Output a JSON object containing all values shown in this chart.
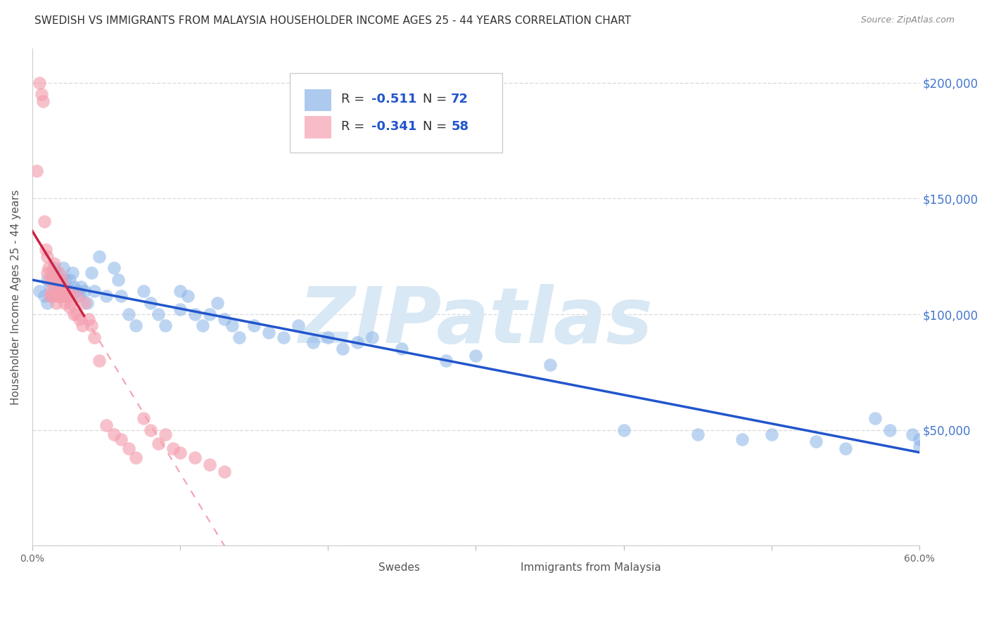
{
  "title": "SWEDISH VS IMMIGRANTS FROM MALAYSIA HOUSEHOLDER INCOME AGES 25 - 44 YEARS CORRELATION CHART",
  "source": "Source: ZipAtlas.com",
  "ylabel": "Householder Income Ages 25 - 44 years",
  "x_min": 0.0,
  "x_max": 0.6,
  "y_min": 0,
  "y_max": 215000,
  "x_ticks": [
    0.0,
    0.1,
    0.2,
    0.3,
    0.4,
    0.5,
    0.6
  ],
  "x_tick_labels": [
    "0.0%",
    "",
    "",
    "",
    "",
    "",
    "60.0%"
  ],
  "y_ticks": [
    0,
    50000,
    100000,
    150000,
    200000
  ],
  "y_tick_labels": [
    "",
    "$50,000",
    "$100,000",
    "$150,000",
    "$200,000"
  ],
  "swedes_color": "#8ab4e8",
  "malaysia_color": "#f4a0b0",
  "swedes_line_color": "#2255cc",
  "malaysia_solid_color": "#cc2244",
  "malaysia_dash_color": "#f4a0b0",
  "watermark_color": "#d8e8f4",
  "background_color": "#ffffff",
  "grid_color": "#dddddd",
  "title_fontsize": 11,
  "axis_fontsize": 10,
  "tick_fontsize": 10,
  "ylabel_color": "#555555",
  "y_tick_color": "#4477cc",
  "source_color": "#888888",
  "swedes_x": [
    0.005,
    0.008,
    0.01,
    0.01,
    0.012,
    0.013,
    0.014,
    0.015,
    0.015,
    0.016,
    0.017,
    0.018,
    0.02,
    0.02,
    0.021,
    0.022,
    0.025,
    0.025,
    0.027,
    0.028,
    0.03,
    0.032,
    0.033,
    0.035,
    0.037,
    0.04,
    0.042,
    0.045,
    0.05,
    0.055,
    0.058,
    0.06,
    0.065,
    0.07,
    0.075,
    0.08,
    0.085,
    0.09,
    0.1,
    0.1,
    0.105,
    0.11,
    0.115,
    0.12,
    0.125,
    0.13,
    0.135,
    0.14,
    0.15,
    0.16,
    0.17,
    0.18,
    0.19,
    0.2,
    0.21,
    0.22,
    0.23,
    0.25,
    0.28,
    0.3,
    0.35,
    0.4,
    0.45,
    0.48,
    0.5,
    0.53,
    0.55,
    0.57,
    0.58,
    0.595,
    0.6,
    0.6
  ],
  "swedes_y": [
    110000,
    108000,
    115000,
    105000,
    112000,
    108000,
    115000,
    120000,
    110000,
    118000,
    113000,
    108000,
    115000,
    108000,
    120000,
    115000,
    115000,
    110000,
    118000,
    112000,
    110000,
    108000,
    112000,
    110000,
    105000,
    118000,
    110000,
    125000,
    108000,
    120000,
    115000,
    108000,
    100000,
    95000,
    110000,
    105000,
    100000,
    95000,
    110000,
    102000,
    108000,
    100000,
    95000,
    100000,
    105000,
    98000,
    95000,
    90000,
    95000,
    92000,
    90000,
    95000,
    88000,
    90000,
    85000,
    88000,
    90000,
    85000,
    80000,
    82000,
    78000,
    50000,
    48000,
    46000,
    48000,
    45000,
    42000,
    55000,
    50000,
    48000,
    46000,
    43000
  ],
  "malaysia_x": [
    0.003,
    0.005,
    0.006,
    0.007,
    0.008,
    0.009,
    0.01,
    0.01,
    0.011,
    0.012,
    0.012,
    0.013,
    0.013,
    0.014,
    0.014,
    0.015,
    0.015,
    0.016,
    0.016,
    0.017,
    0.017,
    0.018,
    0.018,
    0.019,
    0.02,
    0.02,
    0.021,
    0.022,
    0.022,
    0.023,
    0.024,
    0.025,
    0.025,
    0.026,
    0.028,
    0.03,
    0.03,
    0.032,
    0.034,
    0.035,
    0.038,
    0.04,
    0.042,
    0.045,
    0.05,
    0.055,
    0.06,
    0.065,
    0.07,
    0.075,
    0.08,
    0.085,
    0.09,
    0.095,
    0.1,
    0.11,
    0.12,
    0.13
  ],
  "malaysia_y": [
    162000,
    200000,
    195000,
    192000,
    140000,
    128000,
    125000,
    118000,
    120000,
    115000,
    108000,
    118000,
    110000,
    115000,
    108000,
    122000,
    115000,
    110000,
    105000,
    112000,
    108000,
    118000,
    108000,
    108000,
    115000,
    108000,
    112000,
    110000,
    105000,
    108000,
    110000,
    108000,
    103000,
    105000,
    100000,
    108000,
    100000,
    98000,
    95000,
    105000,
    98000,
    95000,
    90000,
    80000,
    52000,
    48000,
    46000,
    42000,
    38000,
    55000,
    50000,
    44000,
    48000,
    42000,
    40000,
    38000,
    35000,
    32000
  ]
}
